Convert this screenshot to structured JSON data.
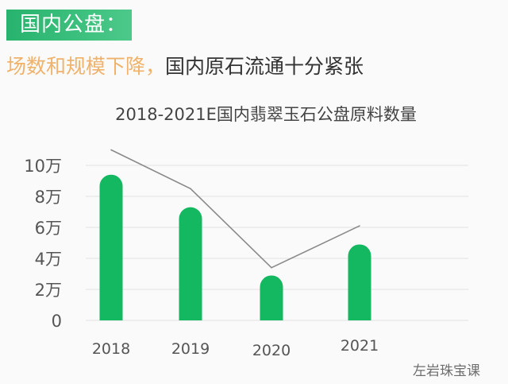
{
  "header": {
    "tag": "国内公盘：",
    "headline_highlight": "场数和规模下降，",
    "headline_rest": "国内原石流通十分紧张"
  },
  "chart_data": {
    "type": "bar",
    "title": "2018-2021E国内翡翠玉石公盘原料数量",
    "categories": [
      "2018",
      "2019",
      "2020",
      "2021"
    ],
    "series": [
      {
        "type": "bar",
        "values": [
          9.4,
          7.3,
          2.9,
          4.9
        ],
        "color": "#13b860"
      },
      {
        "type": "line",
        "values": [
          11.0,
          8.5,
          3.4,
          6.1
        ],
        "color": "#8a8a8a"
      }
    ],
    "yticks": [
      0,
      2,
      4,
      6,
      8,
      10
    ],
    "ytick_labels": [
      "0",
      "2万",
      "4万",
      "6万",
      "8万",
      "10万"
    ],
    "ylim": [
      0,
      10
    ],
    "grid": true
  },
  "watermark": "左岩珠宝课"
}
